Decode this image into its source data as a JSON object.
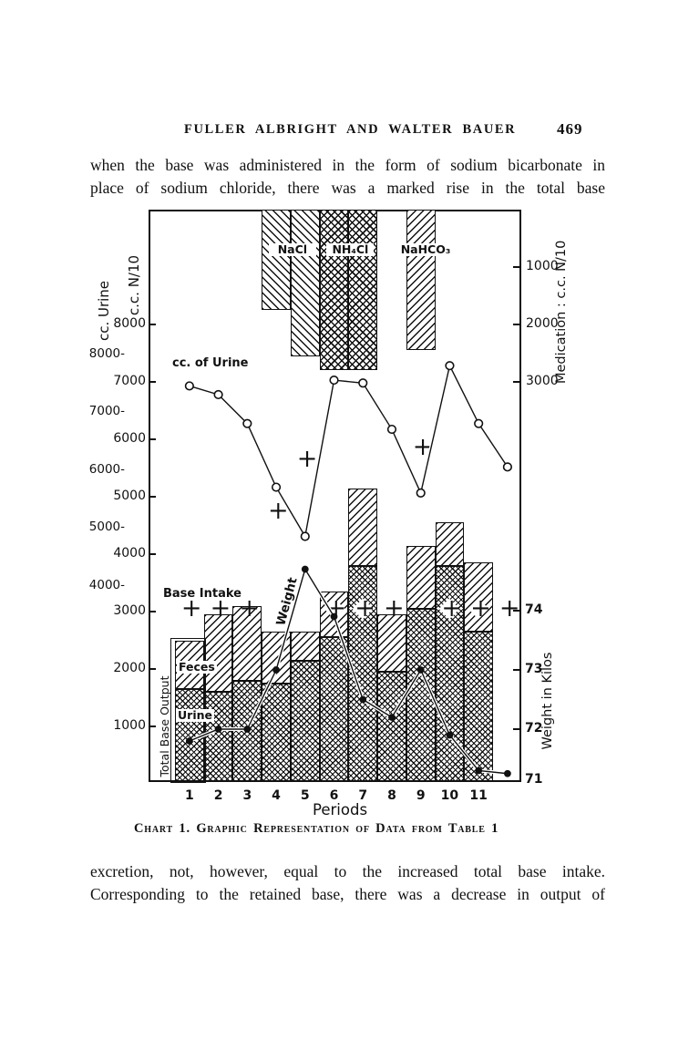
{
  "page": {
    "header": "FULLER ALBRIGHT AND WALTER BAUER",
    "page_number": "469",
    "paragraph_top_lines": [
      "when the base was administered in the form of sodium bicarbonate in",
      "place of sodium chloride, there was a marked rise in the total base"
    ],
    "caption": "Chart 1. Graphic Representation of Data from Table 1",
    "paragraph_bottom_lines": [
      "excretion, not, however, equal to the increased total base intake.",
      "Corresponding to the retained base, there was a decrease in output of"
    ]
  },
  "chart_data": {
    "type": "bar",
    "title": "Chart 1. Graphic Representation of Data from Table 1",
    "xlabel": "Periods",
    "categories": [
      "1",
      "2",
      "3",
      "4",
      "5",
      "6",
      "7",
      "8",
      "9",
      "10",
      "11"
    ],
    "axes": {
      "left_urine": {
        "title": "cc. Urine",
        "ticks": [
          8000,
          7000,
          6000,
          5000,
          4000
        ]
      },
      "left_n10": {
        "title": "c.c. N/10",
        "ticks": [
          8000,
          7000,
          6000,
          5000,
          4000,
          3000,
          2000,
          1000
        ],
        "range": [
          0,
          10000
        ]
      },
      "right_medication": {
        "title": "Medication : c.c. N/10",
        "ticks": [
          1000,
          2000,
          3000
        ],
        "direction": "increases downward from top"
      },
      "right_weight": {
        "title": "Weight in Kilos",
        "ticks": [
          74,
          73,
          72,
          71
        ]
      }
    },
    "series": [
      {
        "name": "Urine (base output)",
        "type": "bar",
        "stack": "total_base_output",
        "pattern": "crosshatch",
        "axis": "left_n10",
        "values": [
          1650,
          1600,
          1800,
          1750,
          2150,
          2550,
          3800,
          1950,
          3050,
          3800,
          2650
        ]
      },
      {
        "name": "Feces (base output)",
        "type": "bar",
        "stack": "total_base_output",
        "pattern": "diagonal",
        "axis": "left_n10",
        "values": [
          850,
          1350,
          1300,
          900,
          500,
          800,
          1350,
          1000,
          1100,
          750,
          1200
        ]
      },
      {
        "name": "Base Intake",
        "type": "plus_markers",
        "axis": "left_n10",
        "x": [
          1,
          2,
          3,
          4,
          5,
          6,
          7,
          8,
          9,
          10,
          11,
          12
        ],
        "values": [
          3050,
          3050,
          3050,
          4750,
          5650,
          3050,
          3050,
          3050,
          5850,
          3050,
          3050,
          3050
        ]
      },
      {
        "name": "cc. of Urine",
        "type": "line_open_circles",
        "axis": "left_urine",
        "x": [
          1,
          2,
          3,
          4,
          5,
          6,
          7,
          8,
          9,
          10,
          11,
          12
        ],
        "values": [
          7450,
          7300,
          6800,
          5700,
          4850,
          7550,
          7500,
          6700,
          5600,
          7800,
          6800,
          6050
        ]
      },
      {
        "name": "Weight",
        "type": "line_filled_dots",
        "axis": "right_weight",
        "x": [
          1,
          2,
          3,
          4,
          5,
          6,
          7,
          8,
          9,
          10,
          11,
          12
        ],
        "values": [
          71.8,
          72.0,
          72.0,
          73.0,
          74.7,
          73.9,
          72.5,
          72.2,
          73.0,
          71.9,
          71.3,
          71.25
        ]
      }
    ],
    "medication_bars": [
      {
        "label": "NaCl",
        "pattern": "diagonal_back",
        "axis": "right_medication",
        "segments": [
          {
            "period": 4,
            "value": 1750
          },
          {
            "period": 5,
            "value": 2550
          }
        ]
      },
      {
        "label": "NH₄Cl",
        "pattern": "crosshatch",
        "axis": "right_medication",
        "segments": [
          {
            "period": 6,
            "value": 2800
          },
          {
            "period": 7,
            "value": 2800
          }
        ]
      },
      {
        "label": "NaHCO₃",
        "pattern": "diagonal",
        "axis": "right_medication",
        "segments": [
          {
            "period": 9,
            "value": 2450
          }
        ]
      }
    ],
    "labels": {
      "total": "Total Base Output",
      "feces": "Feces",
      "urine": "Urine",
      "base_intake": "Base Intake",
      "urine_line": "cc. of Urine",
      "weight": "Weight"
    }
  }
}
